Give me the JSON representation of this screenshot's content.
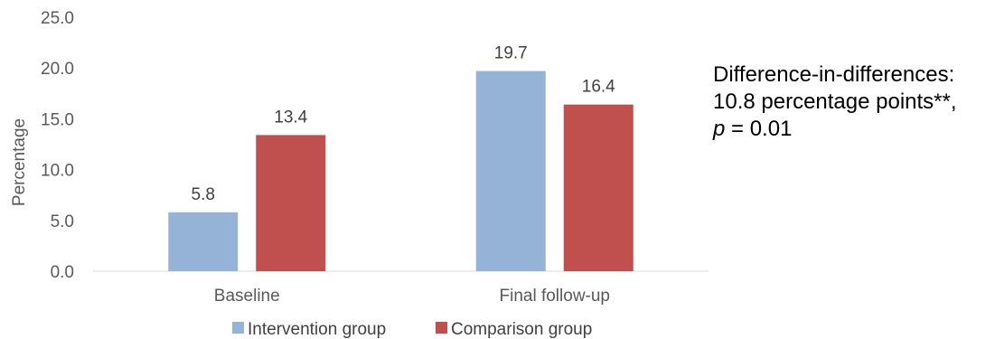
{
  "chart_data": {
    "type": "bar",
    "title": "",
    "xlabel": "",
    "ylabel": "Percentage",
    "ylim": [
      0,
      25
    ],
    "yticks": [
      "0.0",
      "5.0",
      "10.0",
      "15.0",
      "20.0",
      "25.0"
    ],
    "categories": [
      "Baseline",
      "Final follow-up"
    ],
    "series": [
      {
        "name": "Intervention group",
        "color": "#95b3d7",
        "values": [
          5.8,
          19.7
        ],
        "labels": [
          "5.8",
          "19.7"
        ]
      },
      {
        "name": "Comparison group",
        "color": "#c0504d",
        "values": [
          13.4,
          16.4
        ],
        "labels": [
          "13.4",
          "16.4"
        ]
      }
    ],
    "grid": false,
    "legend": "bottom"
  },
  "annotation": {
    "line1": "Difference-in-differences:",
    "line2": "10.8 percentage points**,",
    "line3_var": "p",
    "line3_rest": " = 0.01"
  }
}
